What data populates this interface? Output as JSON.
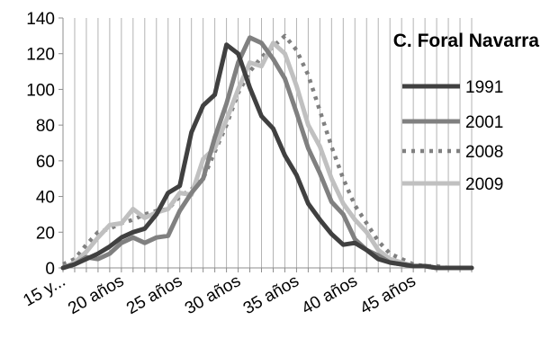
{
  "chart_data": {
    "type": "line",
    "title": "C. Foral Navarra",
    "xlabel": "",
    "ylabel": "",
    "ylim": [
      0,
      140
    ],
    "yticks": [
      0,
      20,
      40,
      60,
      80,
      100,
      120,
      140
    ],
    "x": [
      15,
      16,
      17,
      18,
      19,
      20,
      21,
      22,
      23,
      24,
      25,
      26,
      27,
      28,
      29,
      30,
      31,
      32,
      33,
      34,
      35,
      36,
      37,
      38,
      39,
      40,
      41,
      42,
      43,
      44,
      45,
      46,
      47,
      48,
      49,
      50
    ],
    "xtick_labels": [
      {
        "x": 15,
        "label": "15 y..."
      },
      {
        "x": 20,
        "label": "20 años"
      },
      {
        "x": 25,
        "label": "25 años"
      },
      {
        "x": 30,
        "label": "30 años"
      },
      {
        "x": 35,
        "label": "35 años"
      },
      {
        "x": 40,
        "label": "40 años"
      },
      {
        "x": 45,
        "label": "45 años"
      }
    ],
    "grid": "vertical",
    "legend_position": "right",
    "series": [
      {
        "name": "1991",
        "color": "#404040",
        "dash": "solid",
        "values": [
          0,
          2,
          5,
          8,
          12,
          17,
          20,
          22,
          30,
          42,
          46,
          76,
          91,
          97,
          125,
          120,
          101,
          85,
          78,
          63,
          52,
          36,
          27,
          19,
          13,
          14,
          10,
          5,
          3,
          2,
          1,
          1,
          0,
          0,
          0,
          0
        ]
      },
      {
        "name": "2001",
        "color": "#808080",
        "dash": "solid",
        "values": [
          0,
          2,
          6,
          5,
          8,
          14,
          17,
          14,
          17,
          18,
          32,
          42,
          50,
          73,
          92,
          115,
          129,
          126,
          117,
          106,
          87,
          67,
          53,
          37,
          30,
          16,
          10,
          7,
          3,
          2,
          1,
          1,
          0,
          0,
          0,
          0
        ]
      },
      {
        "name": "2008",
        "color": "#808080",
        "dash": "dotted",
        "values": [
          2,
          5,
          13,
          20,
          22,
          25,
          27,
          30,
          32,
          33,
          40,
          44,
          50,
          65,
          80,
          98,
          110,
          118,
          124,
          130,
          122,
          108,
          88,
          68,
          50,
          35,
          25,
          15,
          8,
          5,
          2,
          1,
          1,
          0,
          0,
          0
        ]
      },
      {
        "name": "2009",
        "color": "#c0c0c0",
        "dash": "solid",
        "values": [
          0,
          3,
          9,
          17,
          24,
          25,
          33,
          28,
          31,
          33,
          42,
          41,
          61,
          67,
          83,
          100,
          115,
          113,
          126,
          120,
          102,
          80,
          68,
          50,
          36,
          27,
          20,
          10,
          5,
          3,
          1,
          1,
          0,
          0,
          0,
          0
        ]
      }
    ]
  }
}
